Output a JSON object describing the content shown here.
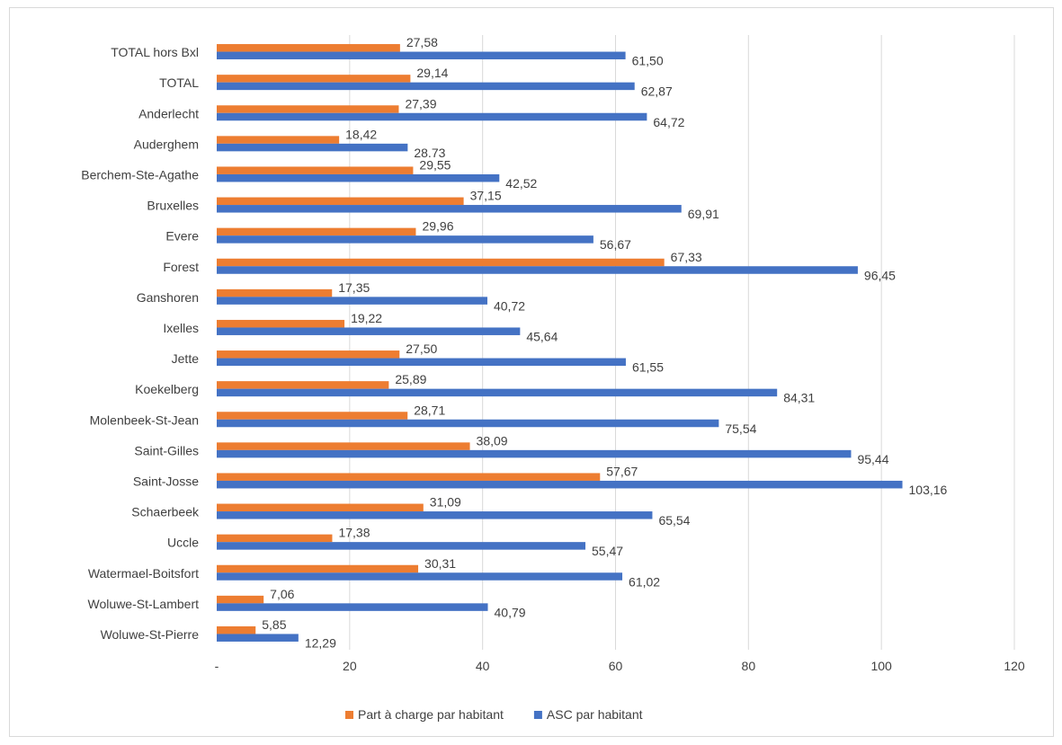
{
  "chart_data": {
    "type": "bar",
    "orientation": "horizontal",
    "categories": [
      "TOTAL hors Bxl",
      "TOTAL",
      "Anderlecht",
      "Auderghem",
      "Berchem-Ste-Agathe",
      "Bruxelles",
      "Evere",
      "Forest",
      "Ganshoren",
      "Ixelles",
      "Jette",
      "Koekelberg",
      "Molenbeek-St-Jean",
      "Saint-Gilles",
      "Saint-Josse",
      "Schaerbeek",
      "Uccle",
      "Watermael-Boitsfort",
      "Woluwe-St-Lambert",
      "Woluwe-St-Pierre"
    ],
    "series": [
      {
        "name": "Part à charge par habitant",
        "color": "#ed7d31",
        "values": [
          27.58,
          29.14,
          27.39,
          18.42,
          29.55,
          37.15,
          29.96,
          67.33,
          17.35,
          19.22,
          27.5,
          25.89,
          28.71,
          38.09,
          57.67,
          31.09,
          17.38,
          30.31,
          7.06,
          5.85
        ],
        "labels": [
          "27,58",
          "29,14",
          "27,39",
          "18,42",
          "29,55",
          "37,15",
          "29,96",
          "67,33",
          "17,35",
          "19,22",
          "27,50",
          "25,89",
          "28,71",
          "38,09",
          "57,67",
          "31,09",
          "17,38",
          "30,31",
          "7,06",
          "5,85"
        ]
      },
      {
        "name": "ASC par habitant",
        "color": "#4472c4",
        "values": [
          61.5,
          62.87,
          64.72,
          28.73,
          42.52,
          69.91,
          56.67,
          96.45,
          40.72,
          45.64,
          61.55,
          84.31,
          75.54,
          95.44,
          103.16,
          65.54,
          55.47,
          61.02,
          40.79,
          12.29
        ],
        "labels": [
          "61,50",
          "62,87",
          "64,72",
          "28.73",
          "42,52",
          "69,91",
          "56,67",
          "96,45",
          "40,72",
          "45,64",
          "61,55",
          "84,31",
          "75,54",
          "95,44",
          "103,16",
          "65,54",
          "55,47",
          "61,02",
          "40,79",
          "12,29"
        ]
      }
    ],
    "xlim": [
      0,
      120
    ],
    "x_ticks": [
      0,
      20,
      40,
      60,
      80,
      100,
      120
    ],
    "x_tick_labels": [
      "-",
      "20",
      "40",
      "60",
      "80",
      "100",
      "120"
    ],
    "grid": "vertical",
    "legend": "bottom-center",
    "title": "",
    "xlabel": "",
    "ylabel": ""
  }
}
